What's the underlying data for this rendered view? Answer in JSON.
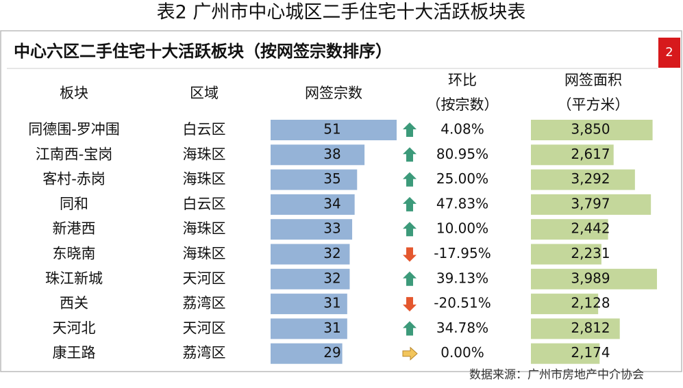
{
  "title": "表2  广州市中心城区二手住宅十大活跃板块表",
  "table": {
    "caption": "中心六区二手住宅十大活跃板块（按网签宗数排序）",
    "badge": "2",
    "header": [
      [
        "板块"
      ],
      [
        "区域"
      ],
      [
        "网签宗数"
      ],
      [
        "环比",
        "（按宗数）"
      ],
      [
        "网签面积",
        "（平方米）"
      ]
    ],
    "rows": [
      {
        "block": "同德围-罗冲围",
        "district": "白云区",
        "count": 51,
        "change": {
          "value": 4.08,
          "label": "4.08%"
        },
        "area": {
          "value": 3850,
          "label": "3,850"
        }
      },
      {
        "block": "江南西-宝岗",
        "district": "海珠区",
        "count": 38,
        "change": {
          "value": 80.95,
          "label": "80.95%"
        },
        "area": {
          "value": 2617,
          "label": "2,617"
        }
      },
      {
        "block": "客村-赤岗",
        "district": "海珠区",
        "count": 35,
        "change": {
          "value": 25.0,
          "label": "25.00%"
        },
        "area": {
          "value": 3292,
          "label": "3,292"
        }
      },
      {
        "block": "同和",
        "district": "白云区",
        "count": 34,
        "change": {
          "value": 47.83,
          "label": "47.83%"
        },
        "area": {
          "value": 3797,
          "label": "3,797"
        }
      },
      {
        "block": "新港西",
        "district": "海珠区",
        "count": 33,
        "change": {
          "value": 10.0,
          "label": "10.00%"
        },
        "area": {
          "value": 2442,
          "label": "2,442"
        }
      },
      {
        "block": "东晓南",
        "district": "海珠区",
        "count": 32,
        "change": {
          "value": -17.95,
          "label": "-17.95%"
        },
        "area": {
          "value": 2231,
          "label": "2,231"
        }
      },
      {
        "block": "珠江新城",
        "district": "天河区",
        "count": 32,
        "change": {
          "value": 39.13,
          "label": "39.13%"
        },
        "area": {
          "value": 3989,
          "label": "3,989"
        }
      },
      {
        "block": "西关",
        "district": "荔湾区",
        "count": 31,
        "change": {
          "value": -20.51,
          "label": "-20.51%"
        },
        "area": {
          "value": 2128,
          "label": "2,128"
        }
      },
      {
        "block": "天河北",
        "district": "天河区",
        "count": 31,
        "change": {
          "value": 34.78,
          "label": "34.78%"
        },
        "area": {
          "value": 2812,
          "label": "2,812"
        }
      },
      {
        "block": "康王路",
        "district": "荔湾区",
        "count": 29,
        "change": {
          "value": 0.0,
          "label": "0.00%"
        },
        "area": {
          "value": 2174,
          "label": "2,174"
        }
      }
    ]
  },
  "source": "数据来源：广州市房地产中介协会"
}
